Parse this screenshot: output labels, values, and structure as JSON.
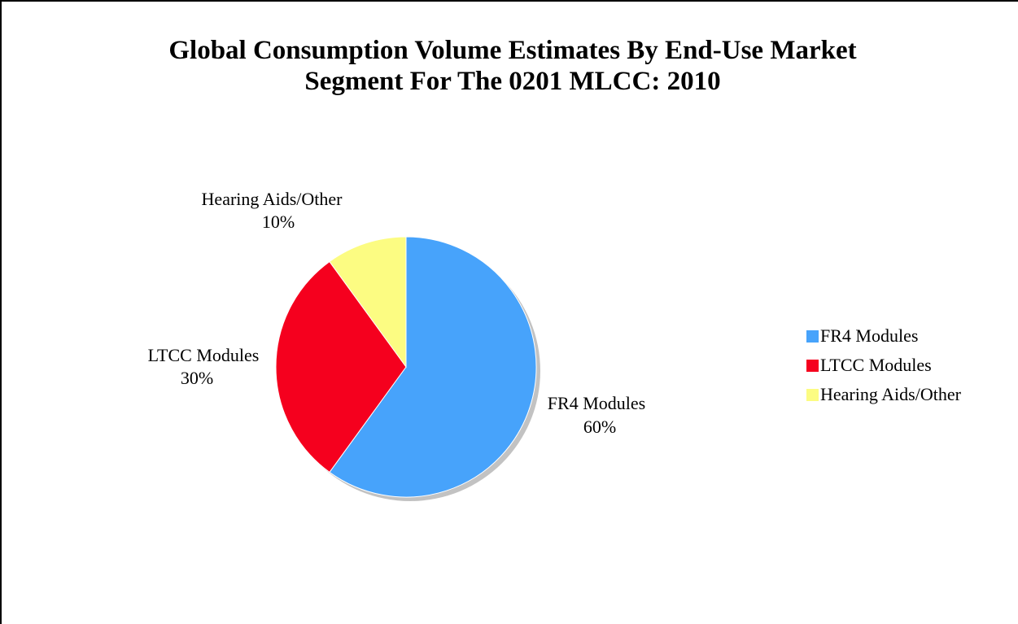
{
  "chart_data": {
    "type": "pie",
    "title_lines": [
      "Global Consumption Volume Estimates By End-Use Market",
      "Segment For The 0201 MLCC: 2010"
    ],
    "slices": [
      {
        "name": "FR4 Modules",
        "value": 60,
        "label": "60%",
        "color": "#47a3fb"
      },
      {
        "name": "LTCC Modules",
        "value": 30,
        "label": "30%",
        "color": "#f5001e"
      },
      {
        "name": "Hearing Aids/Other",
        "value": 10,
        "label": "10%",
        "color": "#fcfc82"
      }
    ],
    "legend": {
      "placement": "right",
      "entries": [
        "FR4 Modules",
        "LTCC Modules",
        "Hearing Aids/Other"
      ]
    }
  }
}
